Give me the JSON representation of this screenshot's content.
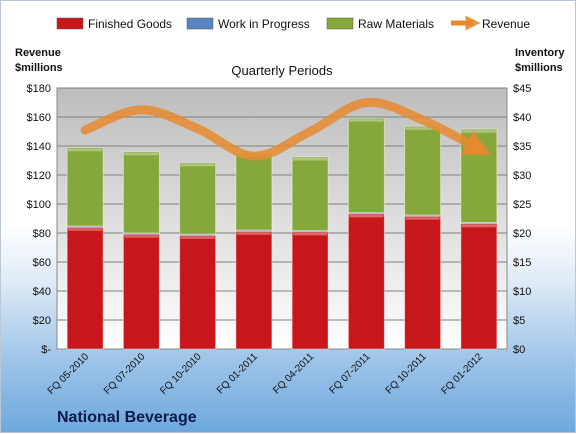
{
  "chart_data": {
    "type": "bar",
    "subtitle": "Quarterly Periods",
    "company": "National Beverage",
    "ylabel_left": [
      "Revenue",
      "$millions"
    ],
    "ylabel_right": [
      "Inventory",
      "$millions"
    ],
    "categories": [
      "FQ 05-2010",
      "FQ 07-2010",
      "FQ 10-2010",
      "FQ 01-2011",
      "FQ 04-2011",
      "FQ 07-2011",
      "FQ 10-2011",
      "FQ 01-2012"
    ],
    "series": [
      {
        "name": "Finished Goods",
        "axis": "right",
        "values": [
          21.0,
          19.8,
          19.6,
          20.3,
          20.2,
          23.3,
          22.9,
          21.6
        ],
        "color": "#c8171b"
      },
      {
        "name": "Work in Progress",
        "axis": "right",
        "values": [
          0.2,
          0.2,
          0.2,
          0.2,
          0.2,
          0.2,
          0.2,
          0.2
        ],
        "color": "#5b84c4"
      },
      {
        "name": "Raw Materials",
        "axis": "right",
        "values": [
          13.5,
          14.0,
          12.3,
          13.3,
          12.7,
          16.3,
          15.3,
          16.1
        ],
        "color": "#86a83a"
      },
      {
        "name": "Revenue",
        "axis": "left",
        "type": "line",
        "values": [
          151,
          165,
          152,
          133,
          150,
          170,
          158,
          138
        ],
        "color": "#e8892e"
      }
    ],
    "ylim_left": [
      0,
      180
    ],
    "ylim_right": [
      0,
      45
    ],
    "yticks_left": [
      "$-",
      "$20",
      "$40",
      "$60",
      "$80",
      "$100",
      "$120",
      "$140",
      "$160",
      "$180"
    ],
    "yticks_right": [
      "$0",
      "$5",
      "$10",
      "$15",
      "$20",
      "$25",
      "$30",
      "$35",
      "$40",
      "$45"
    ],
    "grid": true,
    "legend": "top"
  }
}
